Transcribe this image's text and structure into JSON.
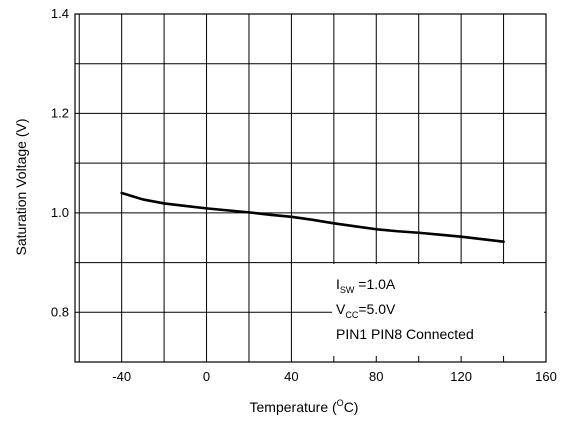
{
  "chart_data": {
    "type": "line",
    "title": "",
    "xlabel": {
      "prefix": "Temperature (",
      "sup": "O",
      "suffix": "C)"
    },
    "ylabel": "Saturation Voltage (V)",
    "xlim": [
      -62,
      160
    ],
    "ylim": [
      0.7,
      1.4
    ],
    "x_ticks": [
      -40,
      0,
      40,
      80,
      120,
      160
    ],
    "x_tick_labels": [
      "-40",
      "0",
      "40",
      "80",
      "120",
      "160"
    ],
    "x_grid": [
      -60,
      -40,
      -20,
      0,
      20,
      40,
      60,
      80,
      100,
      120,
      140,
      160
    ],
    "y_ticks": [
      0.8,
      1.0,
      1.2,
      1.4
    ],
    "y_tick_labels": [
      "0.8",
      "1.0",
      "1.2",
      "1.4"
    ],
    "y_grid": [
      0.7,
      0.8,
      0.9,
      1.0,
      1.1,
      1.2,
      1.3,
      1.4
    ],
    "grid": true,
    "series": [
      {
        "x": [
          -40,
          -30,
          -20,
          -10,
          0,
          10,
          20,
          30,
          40,
          50,
          60,
          70,
          80,
          90,
          100,
          110,
          120,
          130,
          140
        ],
        "y": [
          1.04,
          1.027,
          1.019,
          1.014,
          1.009,
          1.005,
          1.001,
          0.996,
          0.992,
          0.986,
          0.979,
          0.973,
          0.967,
          0.963,
          0.96,
          0.956,
          0.952,
          0.947,
          0.942
        ],
        "color": "#000000"
      }
    ],
    "annotation": {
      "line1": {
        "main": "I",
        "sub": "SW",
        "rest": " =1.0A"
      },
      "line2": {
        "main": "V",
        "sub": "CC",
        "rest": "=5.0V"
      },
      "line3": "PIN1 PIN8 Connected"
    }
  }
}
